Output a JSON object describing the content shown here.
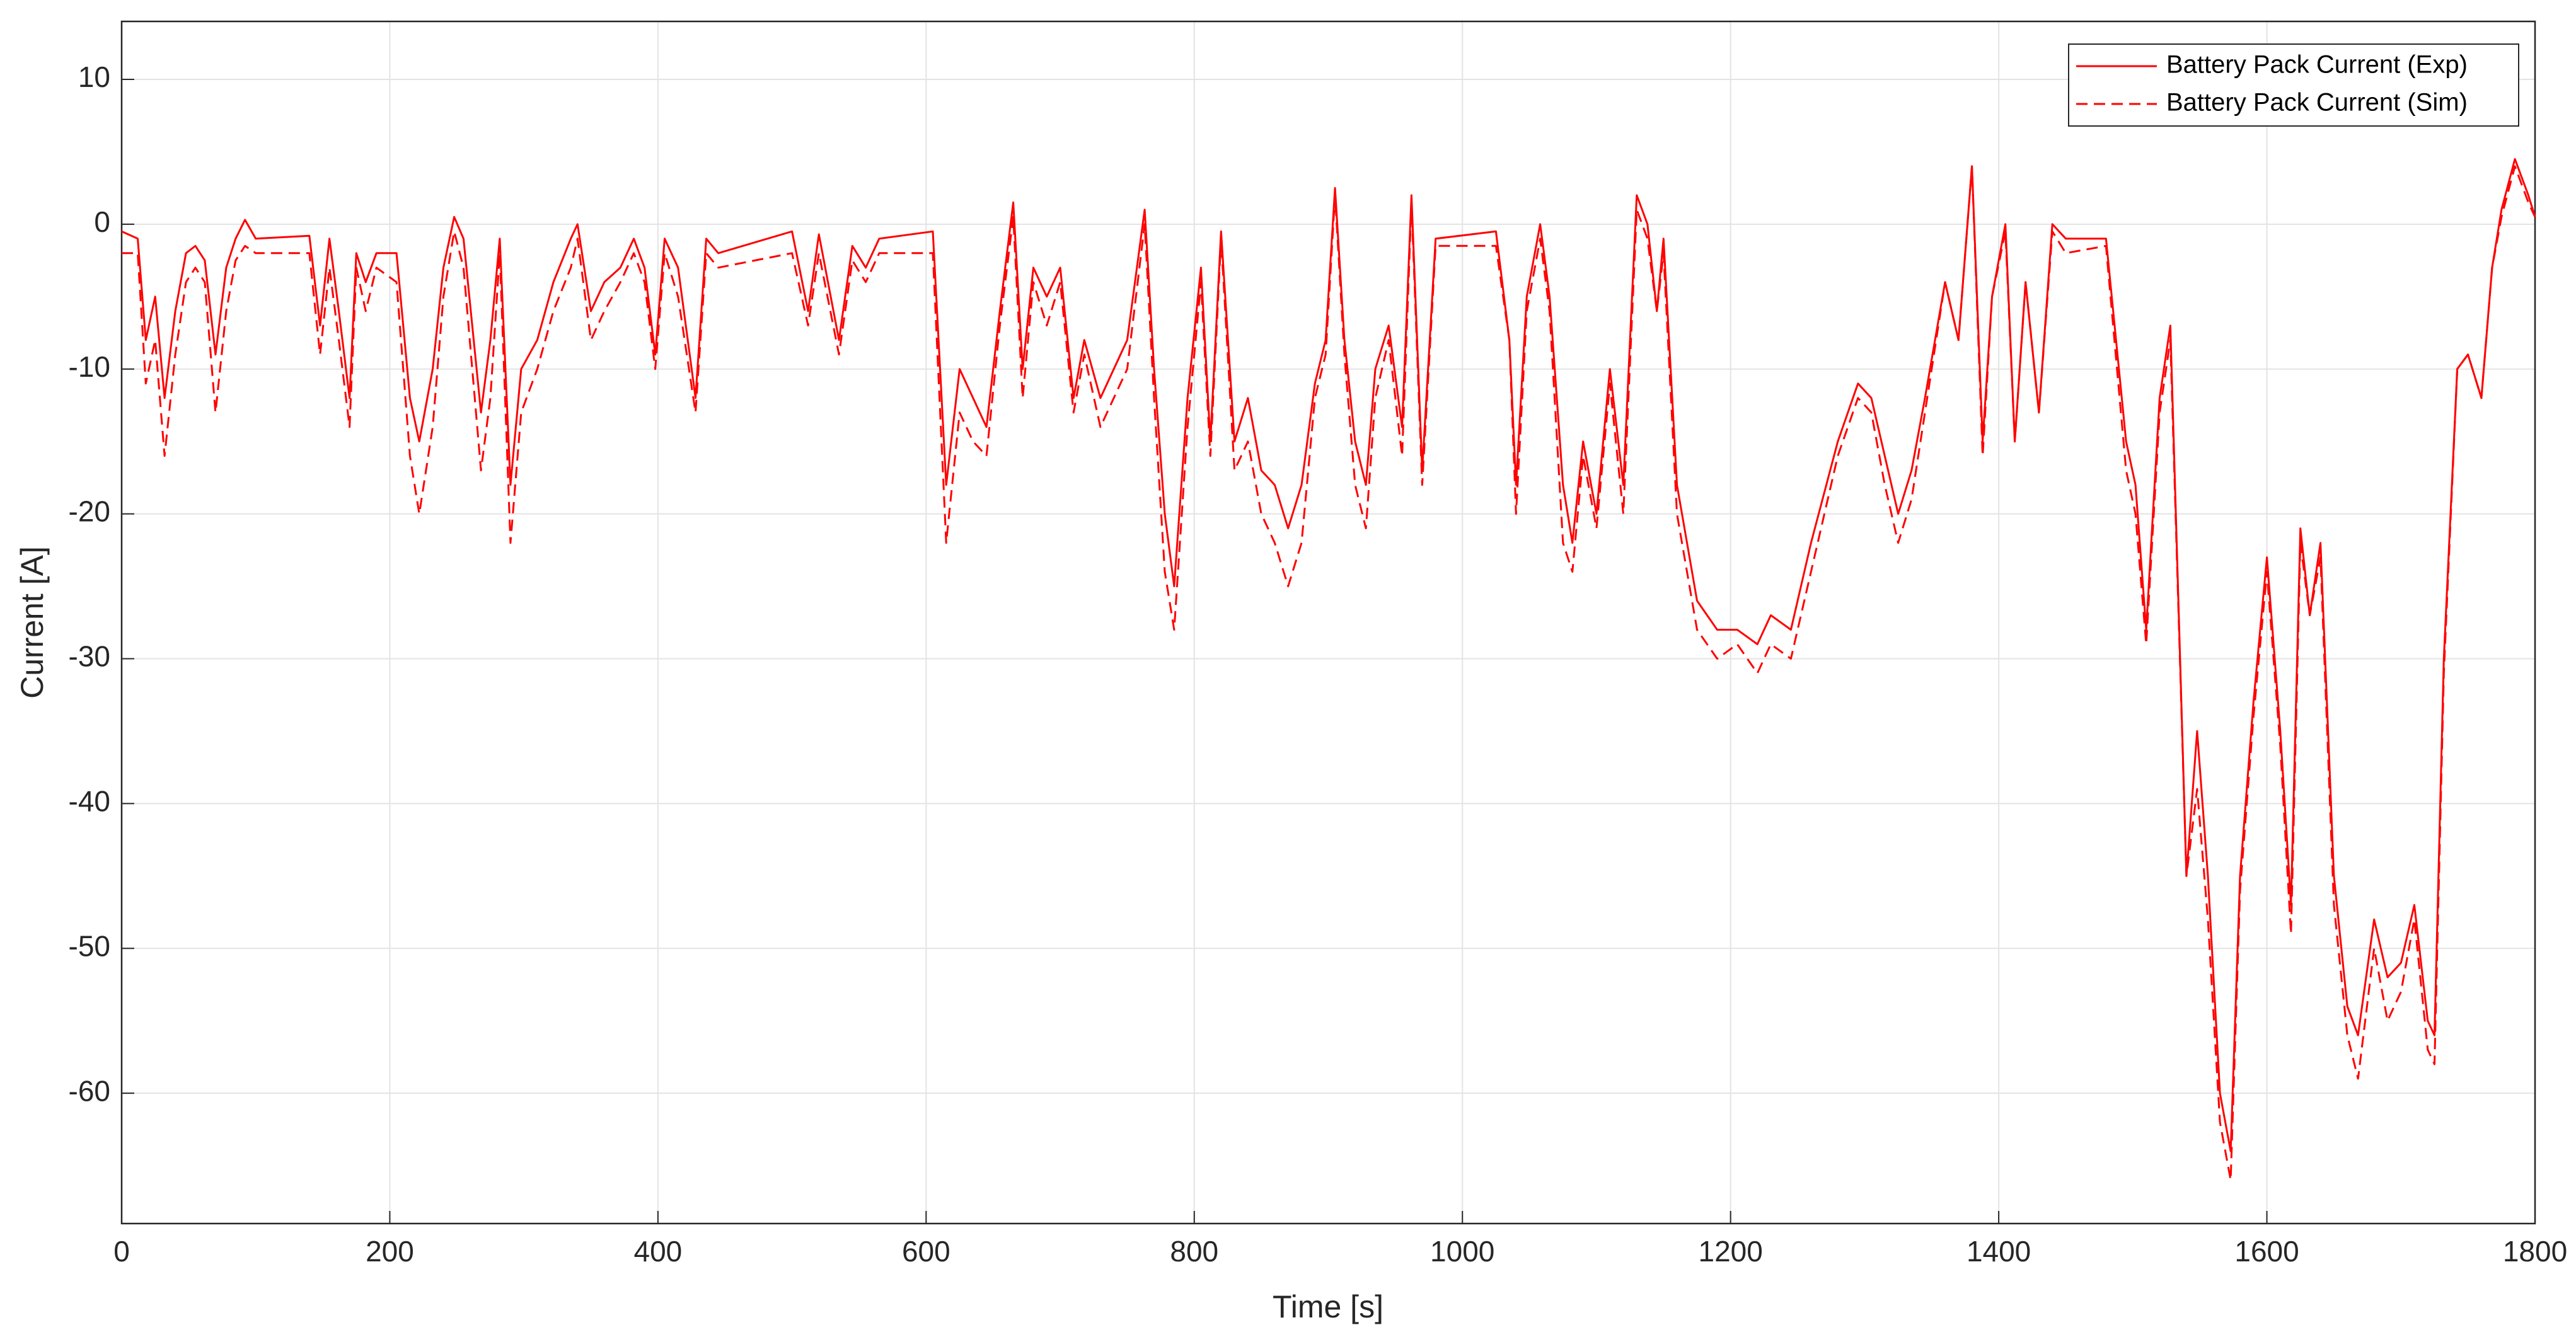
{
  "chart_data": {
    "type": "line",
    "xlabel": "Time [s]",
    "ylabel": "Current [A]",
    "xlim": [
      0,
      1800
    ],
    "ylim": [
      -69,
      14
    ],
    "xticks": [
      0,
      200,
      400,
      600,
      800,
      1000,
      1200,
      1400,
      1600,
      1800
    ],
    "yticks": [
      10,
      0,
      -10,
      -20,
      -30,
      -40,
      -50,
      -60
    ],
    "grid": true,
    "legend": "upper right",
    "x": [
      0,
      12,
      18,
      25,
      32,
      40,
      48,
      55,
      62,
      70,
      78,
      85,
      92,
      100,
      140,
      148,
      155,
      162,
      170,
      175,
      182,
      190,
      205,
      215,
      222,
      232,
      240,
      248,
      255,
      268,
      275,
      282,
      290,
      298,
      310,
      322,
      335,
      340,
      350,
      360,
      372,
      382,
      390,
      398,
      405,
      415,
      428,
      436,
      445,
      500,
      512,
      520,
      535,
      545,
      555,
      565,
      605,
      615,
      625,
      635,
      645,
      655,
      665,
      672,
      680,
      690,
      700,
      710,
      718,
      730,
      740,
      750,
      763,
      770,
      778,
      785,
      795,
      805,
      812,
      820,
      830,
      840,
      850,
      860,
      870,
      880,
      890,
      898,
      905,
      912,
      920,
      928,
      935,
      945,
      955,
      962,
      970,
      980,
      1025,
      1035,
      1040,
      1048,
      1058,
      1065,
      1075,
      1082,
      1090,
      1100,
      1110,
      1120,
      1130,
      1138,
      1145,
      1150,
      1160,
      1175,
      1190,
      1205,
      1220,
      1230,
      1245,
      1260,
      1280,
      1295,
      1305,
      1315,
      1325,
      1335,
      1345,
      1360,
      1370,
      1380,
      1388,
      1395,
      1405,
      1412,
      1420,
      1430,
      1440,
      1450,
      1480,
      1495,
      1502,
      1510,
      1520,
      1528,
      1540,
      1548,
      1556,
      1565,
      1573,
      1580,
      1590,
      1600,
      1610,
      1618,
      1625,
      1632,
      1640,
      1650,
      1660,
      1668,
      1680,
      1690,
      1700,
      1710,
      1720,
      1725,
      1732,
      1742,
      1750,
      1760,
      1768,
      1775,
      1785,
      1795,
      1800
    ],
    "series": [
      {
        "name": "Battery Pack Current (Exp)",
        "color": "#ff0000",
        "dash": false,
        "values": [
          -0.5,
          -1,
          -8,
          -5,
          -12,
          -6,
          -2,
          -1.5,
          -2.5,
          -9,
          -3,
          -1,
          0.3,
          -1,
          -0.8,
          -7,
          -1,
          -6,
          -12,
          -2,
          -4,
          -2,
          -2,
          -12,
          -15,
          -10,
          -3,
          0.5,
          -1,
          -13,
          -8,
          -1,
          -18,
          -10,
          -8,
          -4,
          -1,
          0,
          -6,
          -4,
          -3,
          -1,
          -3,
          -9,
          -1,
          -3,
          -12,
          -1,
          -2,
          -0.5,
          -6,
          -0.7,
          -8,
          -1.5,
          -3,
          -1,
          -0.5,
          -18,
          -10,
          -12,
          -14,
          -6,
          1.5,
          -10,
          -3,
          -5,
          -3,
          -12,
          -8,
          -12,
          -10,
          -8,
          1,
          -10,
          -20,
          -25,
          -12,
          -3,
          -15,
          -0.5,
          -15,
          -12,
          -17,
          -18,
          -21,
          -18,
          -11,
          -8,
          2.5,
          -8,
          -15,
          -18,
          -10,
          -7,
          -14,
          2,
          -17,
          -1,
          -0.5,
          -8,
          -18,
          -5,
          0,
          -5,
          -18,
          -22,
          -15,
          -20,
          -10,
          -18,
          2,
          0,
          -6,
          -1,
          -18,
          -26,
          -28,
          -28,
          -29,
          -27,
          -28,
          -22,
          -15,
          -11,
          -12,
          -16,
          -20,
          -17,
          -12,
          -4,
          -8,
          4,
          -15,
          -5,
          0,
          -15,
          -4,
          -13,
          0,
          -1,
          -1,
          -15,
          -18,
          -28,
          -12,
          -7,
          -45,
          -35,
          -45,
          -60,
          -64,
          -45,
          -33,
          -23,
          -35,
          -47,
          -21,
          -27,
          -22,
          -45,
          -54,
          -56,
          -48,
          -52,
          -51,
          -47,
          -55,
          -56,
          -30,
          -10,
          -9,
          -12,
          -3,
          1,
          4.5,
          2,
          0.5
        ]
      },
      {
        "name": "Battery Pack Current (Sim)",
        "color": "#ff0000",
        "dash": true,
        "values": [
          -2,
          -2,
          -11,
          -8,
          -16,
          -9,
          -4,
          -3,
          -4,
          -13,
          -6,
          -2.5,
          -1.5,
          -2,
          -2,
          -9,
          -3,
          -8,
          -14,
          -3,
          -6,
          -3,
          -4,
          -16,
          -20,
          -14,
          -5,
          -0.5,
          -3,
          -17,
          -12,
          -2,
          -22,
          -13,
          -10,
          -6,
          -3,
          -1,
          -8,
          -6,
          -4,
          -2,
          -4,
          -10,
          -2,
          -5,
          -13,
          -2,
          -3,
          -2,
          -7,
          -2,
          -9,
          -2.5,
          -4,
          -2,
          -2,
          -22,
          -13,
          -15,
          -16,
          -7,
          0.5,
          -12,
          -4,
          -7,
          -4,
          -13,
          -9,
          -14,
          -12,
          -10,
          0,
          -12,
          -24,
          -28,
          -14,
          -4,
          -16,
          -1,
          -17,
          -15,
          -20,
          -22,
          -25,
          -22,
          -12,
          -9,
          2,
          -9,
          -18,
          -21,
          -12,
          -8,
          -16,
          1.5,
          -18,
          -1.5,
          -1.5,
          -8,
          -20,
          -6,
          -1,
          -6,
          -22,
          -24,
          -16,
          -21,
          -11,
          -20,
          1,
          -1,
          -6,
          -2,
          -20,
          -28,
          -30,
          -29,
          -31,
          -29,
          -30,
          -24,
          -16,
          -12,
          -13,
          -18,
          -22,
          -19,
          -13,
          -4,
          -8,
          4,
          -16,
          -5,
          -0.5,
          -15,
          -4,
          -13,
          -0.5,
          -2,
          -1.5,
          -17,
          -20,
          -29,
          -13,
          -8,
          -45,
          -39,
          -48,
          -62,
          -66,
          -46,
          -34,
          -24,
          -36,
          -49,
          -22,
          -27,
          -23,
          -47,
          -56,
          -59,
          -50,
          -55,
          -53,
          -48,
          -57,
          -58,
          -31,
          -10,
          -9,
          -12,
          -3,
          0.5,
          4,
          1.5,
          0.5
        ]
      }
    ]
  }
}
